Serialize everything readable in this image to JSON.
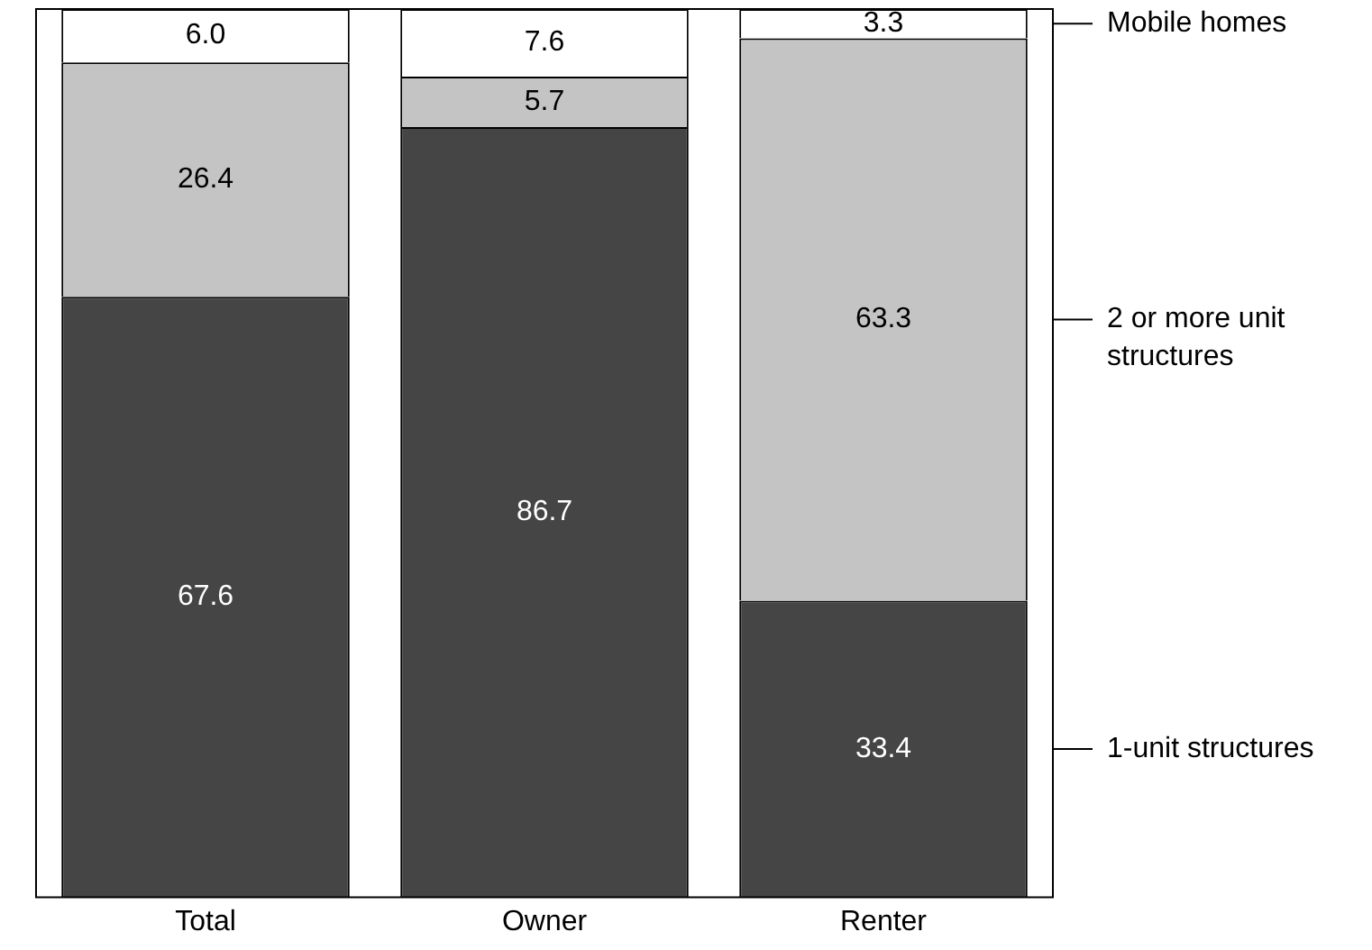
{
  "chart_data": {
    "type": "bar",
    "stacked": true,
    "categories": [
      "Total",
      "Owner",
      "Renter"
    ],
    "series": [
      {
        "name": "1-unit structures",
        "color": "#454545",
        "values": [
          67.6,
          86.7,
          33.4
        ],
        "value_labels": [
          "67.6",
          "86.7",
          "33.4"
        ]
      },
      {
        "name": "2 or more unit structures",
        "color": "#c4c4c4",
        "values": [
          26.4,
          5.7,
          63.3
        ],
        "value_labels": [
          "26.4",
          "5.7",
          "63.3"
        ]
      },
      {
        "name": "Mobile homes",
        "color": "#ffffff",
        "values": [
          6.0,
          7.6,
          3.3
        ],
        "value_labels": [
          "6.0",
          "7.6",
          "3.3"
        ]
      }
    ],
    "ylim": [
      0,
      100
    ],
    "tick_labels": "x",
    "legend": "right",
    "grid": false
  }
}
